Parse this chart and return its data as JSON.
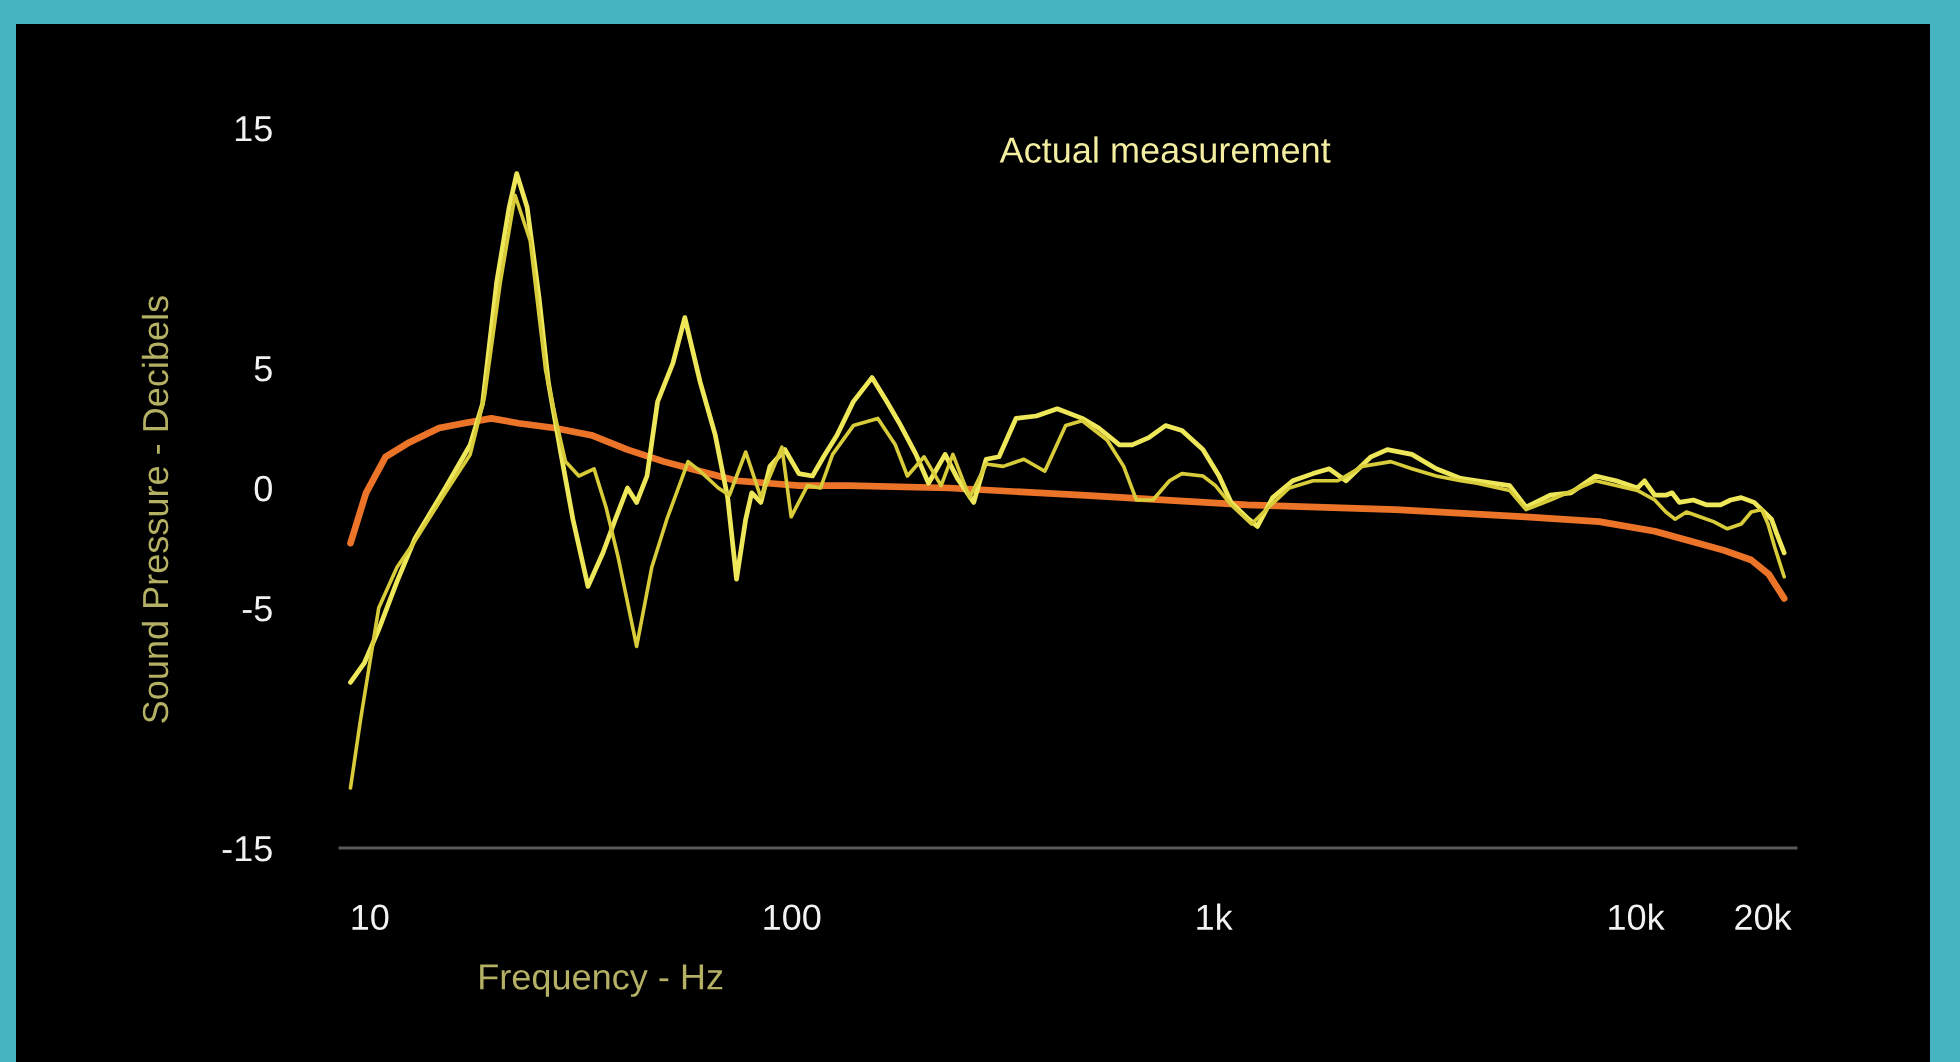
{
  "chart_data": {
    "type": "line",
    "xlabel": "Frequency - Hz",
    "ylabel": "Sound Pressure - Decibels",
    "annotations": [
      "Actual measurement"
    ],
    "log": "x",
    "xlim": [
      8.5,
      24000
    ],
    "xticks": [
      10,
      100,
      {
        "value": 1000,
        "label": "1k"
      },
      {
        "value": 10000,
        "label": "10k"
      },
      {
        "value": 20000,
        "label": "20k"
      }
    ],
    "ylim": [
      -15,
      15
    ],
    "yticks": [
      -15,
      -5,
      0,
      5,
      15
    ],
    "series": [
      {
        "color": "#ec7428",
        "x": [
          9.0,
          9.8,
          10.9,
          12.4,
          14.6,
          16.7,
          19.4,
          22.5,
          27.4,
          33.5,
          40.8,
          49.8,
          60.7,
          74,
          104,
          137,
          236,
          486,
          1200,
          2700,
          5500,
          8200,
          11100,
          13400,
          16200,
          18800,
          20700,
          22500
        ],
        "values": [
          -2.3,
          -0.2,
          1.3,
          1.9,
          2.5,
          2.7,
          2.9,
          2.7,
          2.5,
          2.2,
          1.6,
          1.1,
          0.7,
          0.3,
          0.1,
          0.1,
          0.0,
          -0.3,
          -0.7,
          -0.9,
          -1.2,
          -1.4,
          -1.8,
          -2.2,
          -2.6,
          -3.0,
          -3.6,
          -4.6
        ]
      },
      {
        "color": "#eee75a",
        "x": [
          9.0,
          9.7,
          10.5,
          11.6,
          12.8,
          15.1,
          17.3,
          18.5,
          20.0,
          21.4,
          22.3,
          23.6,
          25.2,
          26.5,
          28.4,
          30.3,
          32.9,
          35.7,
          38.2,
          40.8,
          42.9,
          45.4,
          48.1,
          52.3,
          55.8,
          60.7,
          65.9,
          70.5,
          74.0,
          77.8,
          80.4,
          84.5,
          88.8,
          96.4,
          104,
          112,
          119,
          128,
          140,
          155,
          168,
          180,
          197,
          211,
          231,
          247,
          270,
          289,
          310,
          340,
          380,
          426,
          488,
          534,
          598,
          641,
          702,
          769,
          841,
          943,
          1030,
          1100,
          1210,
          1270,
          1380,
          1540,
          1720,
          1880,
          2060,
          2360,
          2580,
          2950,
          3370,
          3850,
          4210,
          5030,
          5500,
          6280,
          7030,
          8040,
          8990,
          10100,
          10500,
          11100,
          11800,
          12200,
          12700,
          13700,
          14700,
          15900,
          16800,
          17800,
          19100,
          19900,
          21000,
          21600,
          22500
        ],
        "values": [
          -8.1,
          -7.3,
          -5.9,
          -3.9,
          -2.1,
          0.0,
          1.8,
          3.5,
          8.6,
          11.7,
          13.1,
          11.7,
          7.9,
          4.4,
          1.4,
          -1.3,
          -4.1,
          -2.7,
          -1.3,
          0.0,
          -0.6,
          0.5,
          3.6,
          5.2,
          7.1,
          4.4,
          2.2,
          -0.4,
          -3.8,
          -1.3,
          -0.2,
          -0.6,
          0.9,
          1.6,
          0.6,
          0.5,
          1.3,
          2.2,
          3.6,
          4.6,
          3.6,
          2.7,
          1.4,
          0.2,
          1.4,
          0.4,
          -0.6,
          1.2,
          1.3,
          2.9,
          3.0,
          3.3,
          2.9,
          2.5,
          1.8,
          1.8,
          2.1,
          2.6,
          2.4,
          1.6,
          0.5,
          -0.6,
          -1.3,
          -1.6,
          -0.4,
          0.3,
          0.6,
          0.8,
          0.3,
          1.3,
          1.6,
          1.4,
          0.8,
          0.4,
          0.3,
          0.1,
          -0.8,
          -0.3,
          -0.2,
          0.5,
          0.3,
          0.0,
          0.3,
          -0.3,
          -0.3,
          -0.2,
          -0.6,
          -0.5,
          -0.7,
          -0.7,
          -0.5,
          -0.4,
          -0.6,
          -0.9,
          -1.3,
          -1.9,
          -2.7
        ]
      },
      {
        "color": "#d9cc3a",
        "x": [
          9.0,
          9.5,
          10.5,
          11.6,
          12.8,
          15.1,
          17.3,
          18.7,
          20.4,
          22.1,
          24.0,
          26.1,
          27.9,
          29.1,
          31.3,
          34.0,
          36.3,
          38.8,
          42.9,
          46.6,
          50.6,
          56.8,
          60.7,
          67.0,
          71.2,
          77.8,
          84.5,
          94.8,
          99.7,
          109,
          117,
          125,
          140,
          160,
          176,
          188,
          206,
          226,
          241,
          264,
          289,
          317,
          355,
          398,
          446,
          488,
          559,
          612,
          656,
          718,
          786,
          841,
          943,
          1010,
          1100,
          1230,
          1350,
          1510,
          1720,
          1970,
          2250,
          2630,
          2950,
          3370,
          3850,
          4210,
          5030,
          5500,
          6280,
          8040,
          10100,
          11100,
          11800,
          12400,
          13200,
          14200,
          15300,
          16500,
          17800,
          18800,
          19900,
          20600,
          21400,
          22500
        ],
        "values": [
          -12.5,
          -9.7,
          -5.0,
          -3.3,
          -2.2,
          -0.2,
          1.4,
          3.8,
          8.6,
          12.2,
          10.3,
          4.9,
          2.5,
          1.1,
          0.5,
          0.8,
          -0.8,
          -2.9,
          -6.6,
          -3.3,
          -1.3,
          1.1,
          0.7,
          0.0,
          -0.3,
          1.5,
          -0.4,
          1.7,
          -1.2,
          0.1,
          0.0,
          1.4,
          2.6,
          2.9,
          1.8,
          0.5,
          1.3,
          0.1,
          1.4,
          -0.4,
          1.0,
          0.9,
          1.2,
          0.7,
          2.6,
          2.8,
          2.0,
          0.9,
          -0.5,
          -0.5,
          0.3,
          0.6,
          0.5,
          0.1,
          -0.7,
          -1.5,
          -0.8,
          0.0,
          0.3,
          0.3,
          0.9,
          1.1,
          0.8,
          0.5,
          0.3,
          0.2,
          -0.1,
          -0.9,
          -0.5,
          0.3,
          -0.1,
          -0.5,
          -1.0,
          -1.3,
          -1.0,
          -1.2,
          -1.4,
          -1.7,
          -1.5,
          -1.0,
          -0.9,
          -1.5,
          -2.5,
          -3.7
        ]
      }
    ]
  }
}
